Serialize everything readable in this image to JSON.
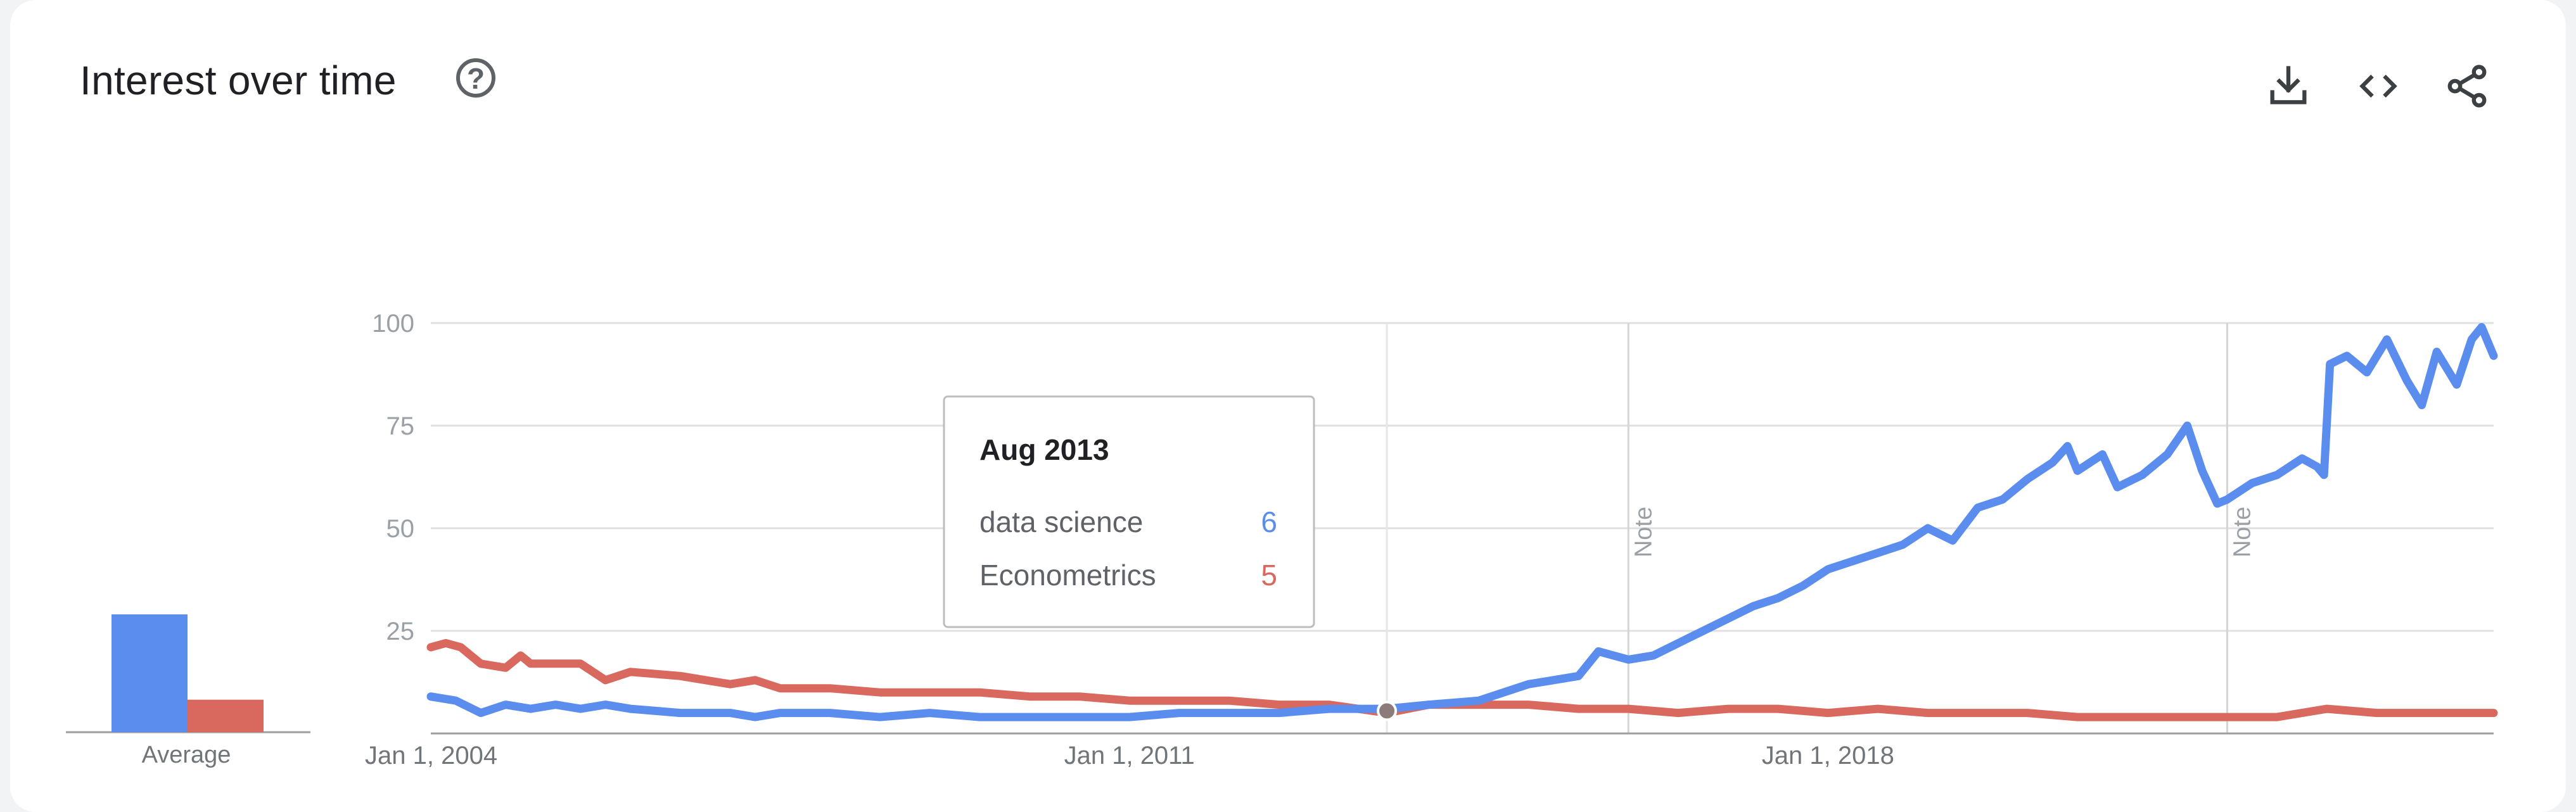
{
  "header": {
    "title": "Interest over time",
    "help_icon": "help-circle-icon",
    "actions": [
      {
        "name": "download-button",
        "icon": "download-icon"
      },
      {
        "name": "embed-button",
        "icon": "code-icon"
      },
      {
        "name": "share-button",
        "icon": "share-icon"
      }
    ]
  },
  "chart_data": {
    "type": "line",
    "y_ticks": [
      "100",
      "75",
      "50",
      "25"
    ],
    "ylim": [
      0,
      100
    ],
    "x_tick_labels": [
      {
        "label": "Jan 1, 2004",
        "date": 2004.0
      },
      {
        "label": "Jan 1, 2011",
        "date": 2011.0
      },
      {
        "label": "Jan 1, 2018",
        "date": 2018.0
      }
    ],
    "x_range": [
      2004.0,
      2024.67
    ],
    "grid": true,
    "notes": [
      {
        "label": "Note",
        "date": 2016.0
      },
      {
        "label": "Note",
        "date": 2022.0
      }
    ],
    "hover_date": 2013.58,
    "series": [
      {
        "name": "data science",
        "color": "#5b8def",
        "average": 29,
        "points": [
          [
            2004.0,
            9
          ],
          [
            2004.25,
            8
          ],
          [
            2004.5,
            5
          ],
          [
            2004.75,
            7
          ],
          [
            2005.0,
            6
          ],
          [
            2005.25,
            7
          ],
          [
            2005.5,
            6
          ],
          [
            2005.75,
            7
          ],
          [
            2006.0,
            6
          ],
          [
            2006.5,
            5
          ],
          [
            2007.0,
            5
          ],
          [
            2007.25,
            4
          ],
          [
            2007.5,
            5
          ],
          [
            2008.0,
            5
          ],
          [
            2008.5,
            4
          ],
          [
            2009.0,
            5
          ],
          [
            2009.5,
            4
          ],
          [
            2010.0,
            4
          ],
          [
            2010.5,
            4
          ],
          [
            2011.0,
            4
          ],
          [
            2011.5,
            5
          ],
          [
            2012.0,
            5
          ],
          [
            2012.5,
            5
          ],
          [
            2013.0,
            6
          ],
          [
            2013.58,
            6
          ],
          [
            2014.0,
            7
          ],
          [
            2014.5,
            8
          ],
          [
            2014.75,
            10
          ],
          [
            2015.0,
            12
          ],
          [
            2015.25,
            13
          ],
          [
            2015.5,
            14
          ],
          [
            2015.7,
            20
          ],
          [
            2016.0,
            18
          ],
          [
            2016.25,
            19
          ],
          [
            2016.5,
            22
          ],
          [
            2016.75,
            25
          ],
          [
            2017.0,
            28
          ],
          [
            2017.25,
            31
          ],
          [
            2017.5,
            33
          ],
          [
            2017.75,
            36
          ],
          [
            2018.0,
            40
          ],
          [
            2018.25,
            42
          ],
          [
            2018.5,
            44
          ],
          [
            2018.75,
            46
          ],
          [
            2019.0,
            50
          ],
          [
            2019.25,
            47
          ],
          [
            2019.5,
            55
          ],
          [
            2019.75,
            57
          ],
          [
            2020.0,
            62
          ],
          [
            2020.25,
            66
          ],
          [
            2020.4,
            70
          ],
          [
            2020.5,
            64
          ],
          [
            2020.75,
            68
          ],
          [
            2020.9,
            60
          ],
          [
            2021.15,
            63
          ],
          [
            2021.4,
            68
          ],
          [
            2021.6,
            75
          ],
          [
            2021.75,
            64
          ],
          [
            2021.9,
            56
          ],
          [
            2022.0,
            57
          ],
          [
            2022.25,
            61
          ],
          [
            2022.5,
            63
          ],
          [
            2022.75,
            67
          ],
          [
            2022.9,
            65
          ],
          [
            2022.97,
            63
          ],
          [
            2023.03,
            90
          ],
          [
            2023.2,
            92
          ],
          [
            2023.4,
            88
          ],
          [
            2023.6,
            96
          ],
          [
            2023.8,
            86
          ],
          [
            2023.95,
            80
          ],
          [
            2024.1,
            93
          ],
          [
            2024.3,
            85
          ],
          [
            2024.45,
            96
          ],
          [
            2024.55,
            99
          ],
          [
            2024.67,
            92
          ]
        ]
      },
      {
        "name": "Econometrics",
        "color": "#d9695e",
        "average": 8,
        "points": [
          [
            2004.0,
            21
          ],
          [
            2004.15,
            22
          ],
          [
            2004.3,
            21
          ],
          [
            2004.5,
            17
          ],
          [
            2004.75,
            16
          ],
          [
            2004.9,
            19
          ],
          [
            2005.0,
            17
          ],
          [
            2005.5,
            17
          ],
          [
            2005.75,
            13
          ],
          [
            2006.0,
            15
          ],
          [
            2006.5,
            14
          ],
          [
            2007.0,
            12
          ],
          [
            2007.25,
            13
          ],
          [
            2007.5,
            11
          ],
          [
            2008.0,
            11
          ],
          [
            2008.5,
            10
          ],
          [
            2009.0,
            10
          ],
          [
            2009.5,
            10
          ],
          [
            2010.0,
            9
          ],
          [
            2010.5,
            9
          ],
          [
            2011.0,
            8
          ],
          [
            2011.5,
            8
          ],
          [
            2012.0,
            8
          ],
          [
            2012.5,
            7
          ],
          [
            2013.0,
            7
          ],
          [
            2013.58,
            5
          ],
          [
            2014.0,
            7
          ],
          [
            2014.5,
            7
          ],
          [
            2015.0,
            7
          ],
          [
            2015.5,
            6
          ],
          [
            2016.0,
            6
          ],
          [
            2016.5,
            5
          ],
          [
            2017.0,
            6
          ],
          [
            2017.5,
            6
          ],
          [
            2018.0,
            5
          ],
          [
            2018.5,
            6
          ],
          [
            2019.0,
            5
          ],
          [
            2019.5,
            5
          ],
          [
            2020.0,
            5
          ],
          [
            2020.5,
            4
          ],
          [
            2021.0,
            4
          ],
          [
            2021.5,
            4
          ],
          [
            2022.0,
            4
          ],
          [
            2022.5,
            4
          ],
          [
            2023.0,
            6
          ],
          [
            2023.5,
            5
          ],
          [
            2024.0,
            5
          ],
          [
            2024.5,
            5
          ],
          [
            2024.67,
            5
          ]
        ]
      }
    ],
    "average_label": "Average"
  },
  "tooltip": {
    "title": "Aug 2013",
    "rows": [
      {
        "label": "data science",
        "value": "6",
        "color": "#5b8def"
      },
      {
        "label": "Econometrics",
        "value": "5",
        "color": "#d9695e"
      }
    ]
  }
}
